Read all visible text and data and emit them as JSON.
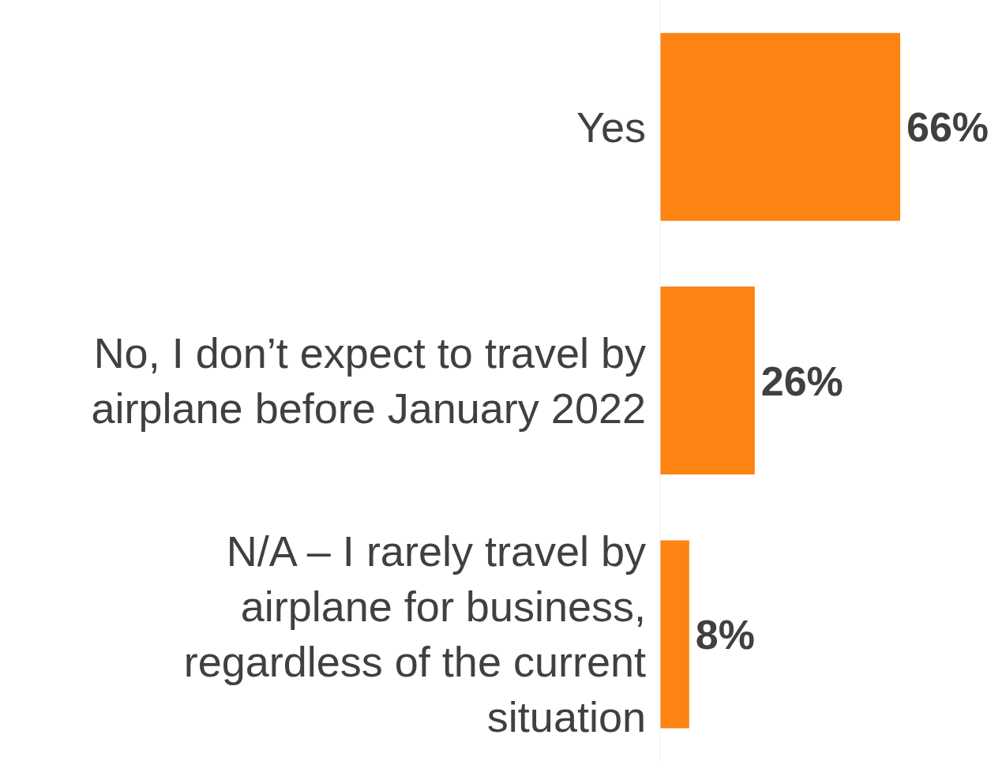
{
  "chart_data": {
    "type": "bar",
    "orientation": "horizontal",
    "relative": false,
    "categories": [
      "Yes",
      "No, I don’t expect to travel by airplane before January 2022",
      "N/A – I rarely travel by airplane for business, regardless of the current situation"
    ],
    "values": [
      66,
      26,
      8
    ],
    "color": "#fd8313",
    "data_labels": true,
    "value_labels": [
      "66%",
      "26%",
      "8%"
    ],
    "grid": false,
    "legend": false
  }
}
